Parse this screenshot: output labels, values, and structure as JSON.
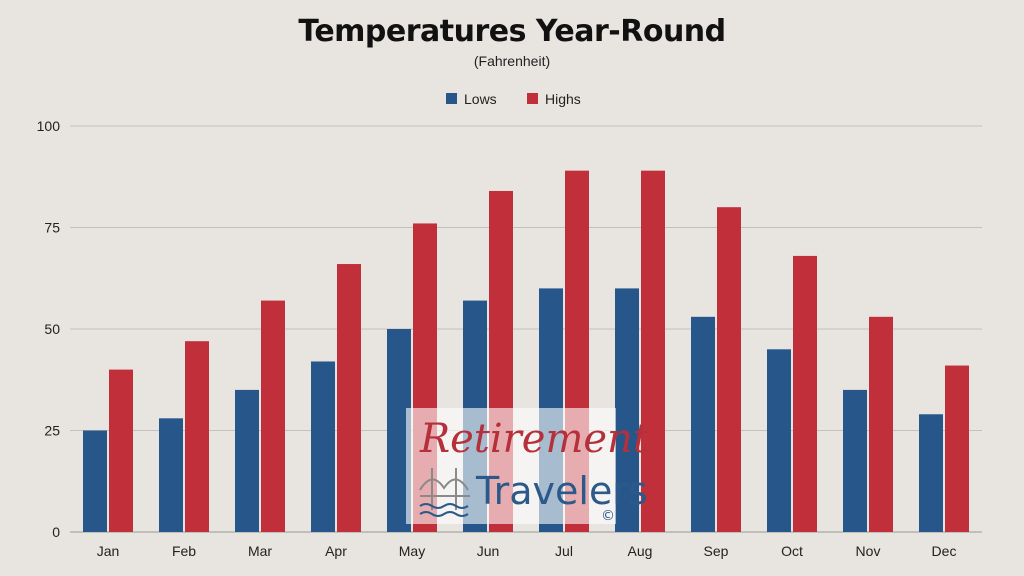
{
  "chart_data": {
    "type": "bar",
    "title": "Temperatures Year-Round",
    "subtitle": "(Fahrenheit)",
    "categories": [
      "Jan",
      "Feb",
      "Mar",
      "Apr",
      "May",
      "Jun",
      "Jul",
      "Aug",
      "Sep",
      "Oct",
      "Nov",
      "Dec"
    ],
    "series": [
      {
        "name": "Lows",
        "color": "#27578a",
        "values": [
          25,
          28,
          35,
          42,
          50,
          57,
          60,
          60,
          53,
          45,
          35,
          29
        ]
      },
      {
        "name": "Highs",
        "color": "#c1303a",
        "values": [
          40,
          47,
          57,
          66,
          76,
          84,
          89,
          89,
          80,
          68,
          53,
          41
        ]
      }
    ],
    "ylim": [
      0,
      100
    ],
    "yticks": [
      0,
      25,
      50,
      75,
      100
    ],
    "grid": true,
    "legend_position": "top-center"
  },
  "watermark": {
    "line1": "Retirement",
    "line2": "Travelers",
    "mark": "©",
    "icon": "bridge-icon",
    "line1_color": "#b5303a",
    "line2_color": "#2b5a8a"
  }
}
